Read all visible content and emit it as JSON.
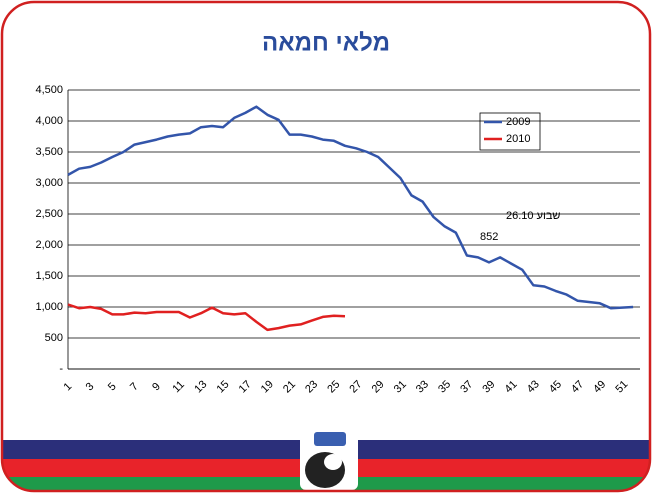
{
  "chart_data": {
    "type": "line",
    "title": "מלאי חמאה",
    "categories": [
      "1",
      null,
      "3",
      null,
      "5",
      null,
      "7",
      null,
      "9",
      null,
      "11",
      null,
      "13",
      null,
      "15",
      null,
      "17",
      null,
      "19",
      null,
      "21",
      null,
      "23",
      null,
      "25",
      null,
      "27",
      null,
      "29",
      null,
      "31",
      null,
      "33",
      null,
      "35",
      null,
      "37",
      null,
      "39",
      null,
      "41",
      null,
      "43",
      null,
      "45",
      null,
      "47",
      null,
      "49",
      null,
      "51",
      null
    ],
    "series": [
      {
        "name": "2009",
        "color": "#3355aa",
        "values": [
          3130,
          3230,
          3260,
          3330,
          3420,
          3500,
          3620,
          3660,
          3700,
          3750,
          3780,
          3800,
          3900,
          3920,
          3900,
          4050,
          4130,
          4230,
          4100,
          4020,
          3780,
          3780,
          3750,
          3700,
          3680,
          3600,
          3560,
          3500,
          3420,
          3250,
          3080,
          2800,
          2700,
          2450,
          2300,
          2200,
          1830,
          1800,
          1720,
          1800,
          1700,
          1600,
          1350,
          1330,
          1260,
          1200,
          1100,
          1080,
          1060,
          980,
          990,
          1000
        ]
      },
      {
        "name": "2010",
        "color": "#e02020",
        "values": [
          1040,
          980,
          1000,
          970,
          880,
          880,
          910,
          900,
          920,
          920,
          920,
          830,
          900,
          990,
          900,
          880,
          900,
          760,
          630,
          660,
          700,
          720,
          780,
          840,
          860,
          852,
          null,
          null,
          null,
          null,
          null,
          null,
          null,
          null,
          null,
          null,
          null,
          null,
          null,
          null,
          null,
          null,
          null,
          null,
          null,
          null,
          null,
          null,
          null,
          null,
          null,
          null
        ]
      }
    ],
    "ylim": [
      0,
      4500
    ],
    "yticks": [
      {
        "value": 0,
        "label": "-"
      },
      500,
      {
        "value": 1000,
        "label": "1,000"
      },
      {
        "value": 1500,
        "label": "1,500"
      },
      {
        "value": 2000,
        "label": "2,000"
      },
      {
        "value": 2500,
        "label": "2,500"
      },
      {
        "value": 3000,
        "label": "3,000"
      },
      {
        "value": 3500,
        "label": "3,500"
      },
      {
        "value": 4000,
        "label": "4,000"
      },
      {
        "value": 4500,
        "label": "4,500"
      }
    ],
    "grid": true,
    "legend": "upper right",
    "annotations": [
      "שבוע 26.10",
      "852"
    ]
  }
}
